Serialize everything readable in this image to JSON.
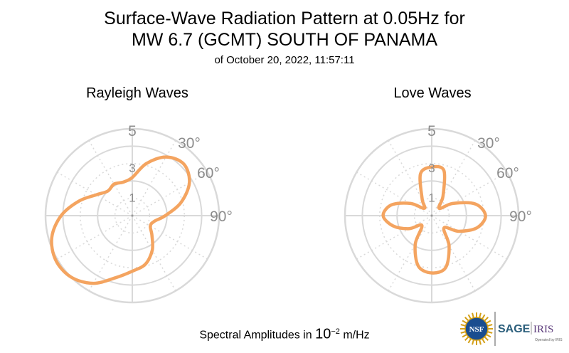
{
  "title_line1": "Surface-Wave Radiation Pattern at 0.05Hz for",
  "title_line2": "MW 6.7 (GCMT) SOUTH OF PANAMA",
  "subtitle": "of October 20, 2022, 11:57:11",
  "footer": {
    "prefix": "Spectral Amplitudes in ",
    "base": "10",
    "exponent": "−2",
    "suffix": " m/Hz"
  },
  "logos": {
    "nsf": "NSF",
    "sage": "SAGE",
    "iris": "IRIS",
    "operated_by": "Operated by IRIS"
  },
  "colors": {
    "curve": "#f4a460",
    "grid": "#d9d9d9",
    "tick_text": "#8c8c8c"
  },
  "chart_data": [
    {
      "type": "polar-line",
      "title": "Rayleigh Waves",
      "radial_ticks": [
        "1",
        "3",
        "5"
      ],
      "radial_range": [
        0,
        5
      ],
      "angle_ticks": [
        "30°",
        "60°",
        "90°"
      ],
      "angles_deg": [
        0,
        15,
        30,
        45,
        60,
        75,
        90,
        105,
        120,
        135,
        150,
        165,
        180,
        195,
        210,
        225,
        240,
        255,
        270,
        285,
        300,
        315,
        330,
        345,
        360
      ],
      "r": [
        2.2,
        3.1,
        3.9,
        4.2,
        3.8,
        2.9,
        1.9,
        1.3,
        1.2,
        1.6,
        2.3,
        2.9,
        3.2,
        3.7,
        4.5,
        5.0,
        5.1,
        4.8,
        4.1,
        3.2,
        2.4,
        2.0,
        2.1,
        2.0,
        2.2
      ],
      "grid": true
    },
    {
      "type": "polar-line",
      "title": "Love Waves",
      "radial_ticks": [
        "1",
        "3",
        "5"
      ],
      "radial_range": [
        0,
        5
      ],
      "angle_ticks": [
        "30°",
        "60°",
        "90°"
      ],
      "angles_deg": [
        0,
        15,
        30,
        45,
        60,
        75,
        90,
        105,
        120,
        135,
        150,
        165,
        180,
        195,
        210,
        225,
        240,
        255,
        270,
        285,
        300,
        315,
        330,
        345,
        360
      ],
      "r": [
        2.8,
        2.7,
        1.3,
        0.6,
        1.4,
        2.6,
        3.1,
        2.7,
        1.8,
        1.0,
        2.0,
        3.1,
        3.3,
        3.0,
        1.9,
        0.8,
        1.5,
        2.3,
        2.8,
        2.4,
        1.4,
        0.6,
        1.1,
        2.5,
        2.8
      ],
      "grid": true
    }
  ]
}
